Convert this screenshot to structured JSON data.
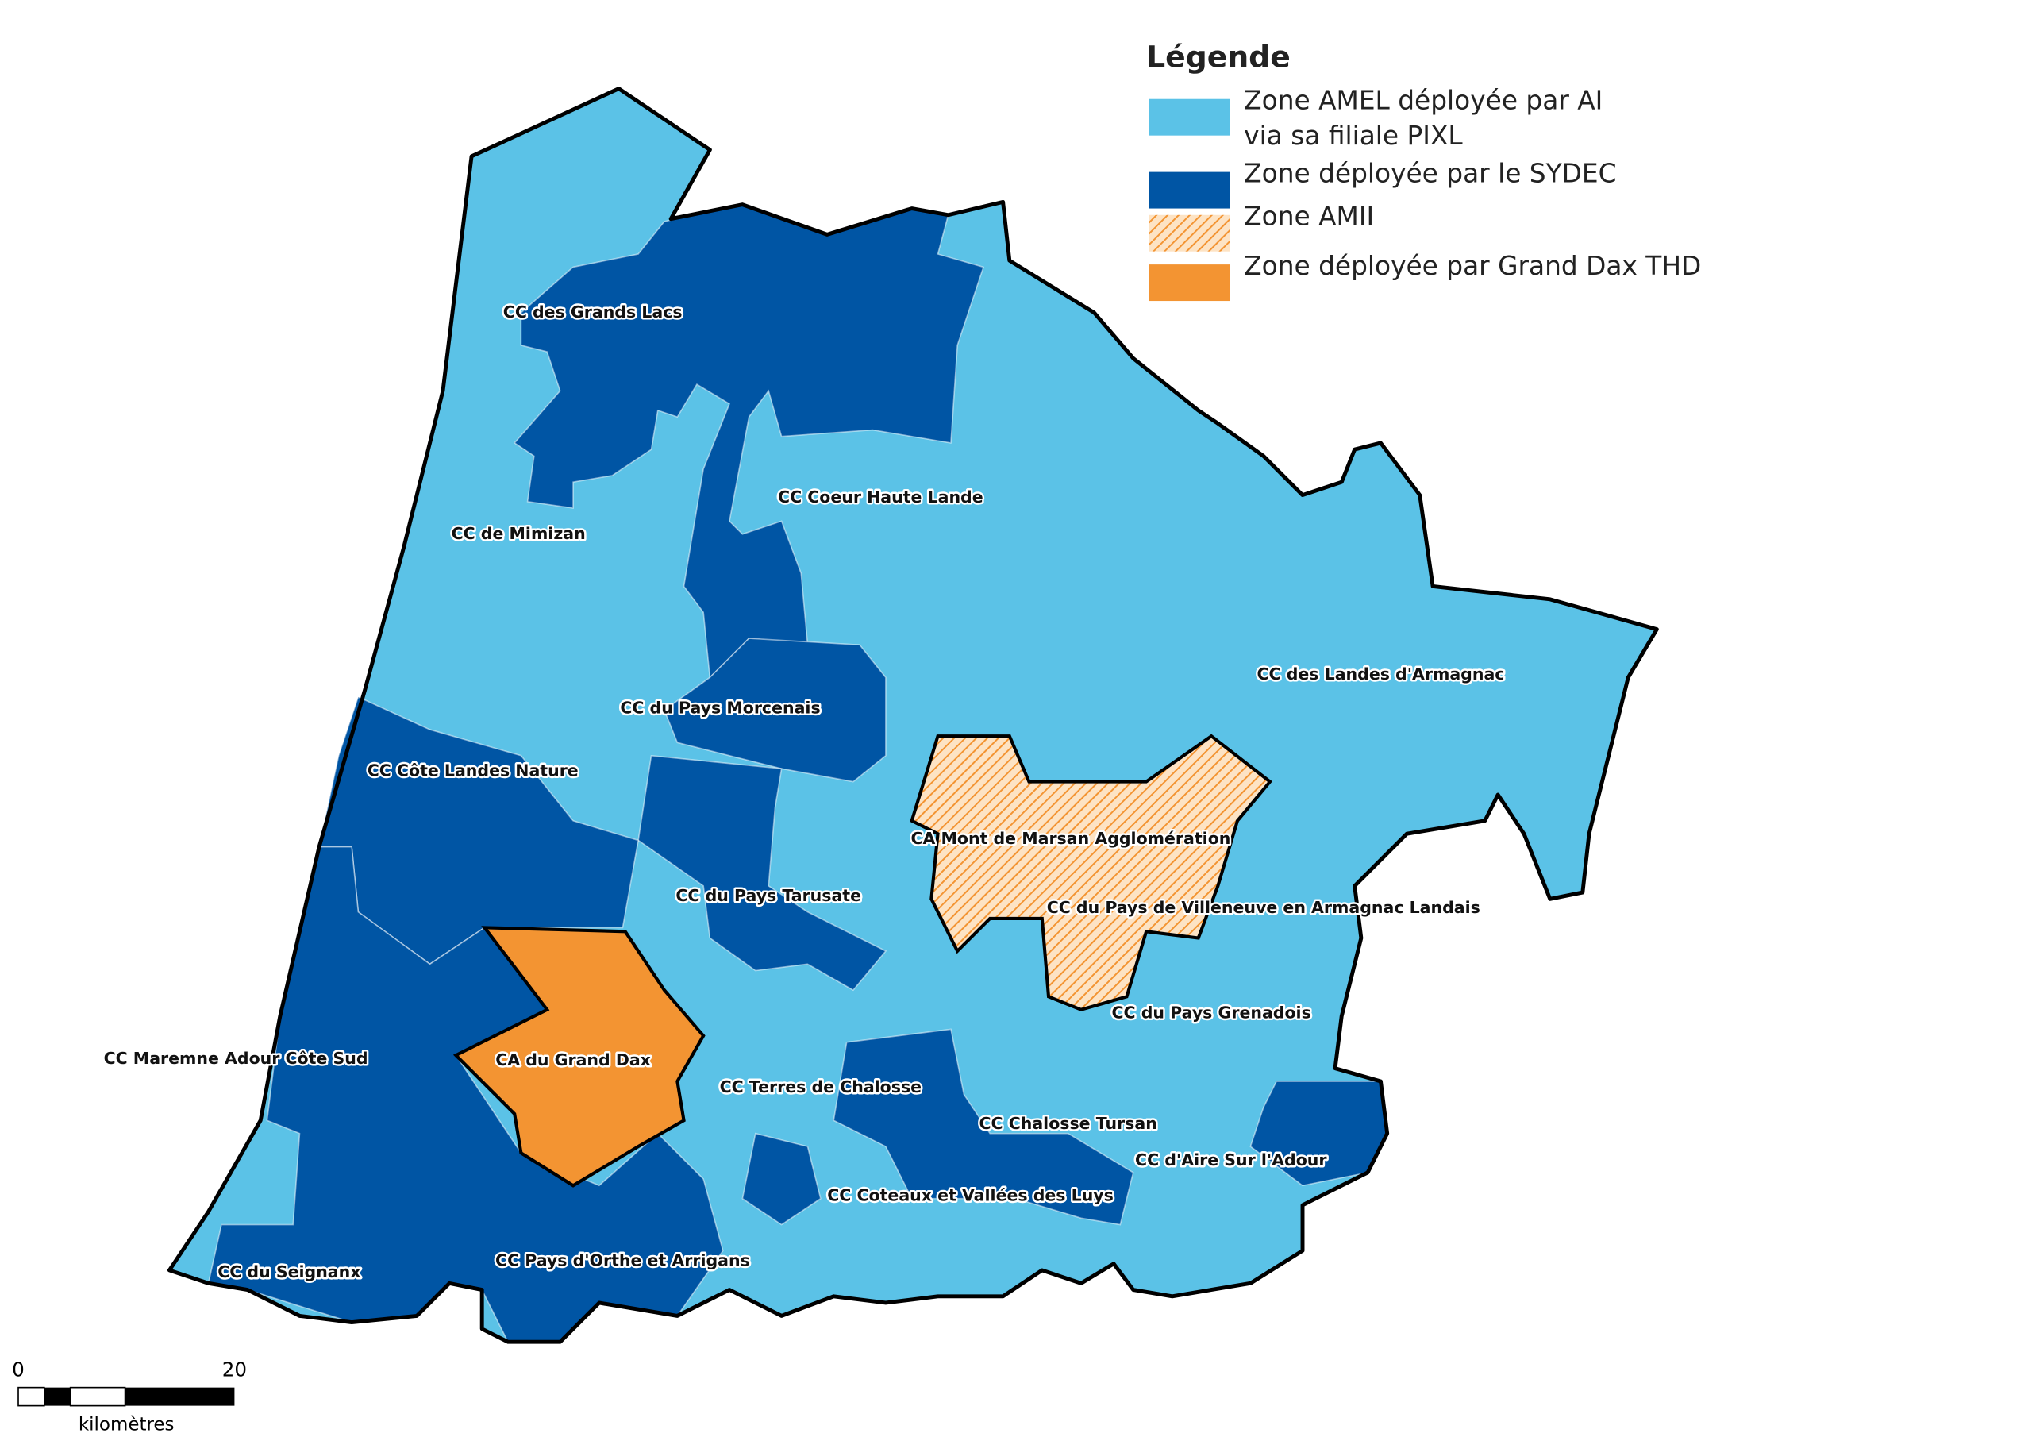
{
  "legend": {
    "title": "Légende",
    "items": [
      {
        "lines": [
          "Zone AMEL déployée par AI",
          "via sa filiale PIXL"
        ],
        "color": "#5bc2e7",
        "hatched": false
      },
      {
        "lines": [
          "Zone déployée par le SYDEC"
        ],
        "color": "#0055a4",
        "hatched": false
      },
      {
        "lines": [
          "Zone AMII"
        ],
        "color": "#f39432",
        "hatched": true
      },
      {
        "lines": [
          "Zone déployée par Grand Dax THD"
        ],
        "color": "#f39432",
        "hatched": false
      }
    ]
  },
  "labels": [
    "CC des Grands Lacs",
    "CC Coeur Haute Lande",
    "CC de Mimizan",
    "CC du Pays Morcenais",
    "CC des Landes d'Armagnac",
    "CC Côte Landes Nature",
    "CA Mont de Marsan Agglomération",
    "CC du Pays Tarusate",
    "CC du Pays de Villeneuve en Armagnac Landais",
    "CC du Pays Grenadois",
    "CC Maremne Adour Côte Sud",
    "CA du Grand Dax",
    "CC Terres de Chalosse",
    "CC Chalosse Tursan",
    "CC d'Aire Sur l'Adour",
    "CC Coteaux et Vallées des Luys",
    "CC Pays d'Orthe et Arrigans",
    "CC du Seignanx"
  ],
  "scale_bar": {
    "start": "0",
    "end": "20",
    "unit": "kilomètres"
  }
}
